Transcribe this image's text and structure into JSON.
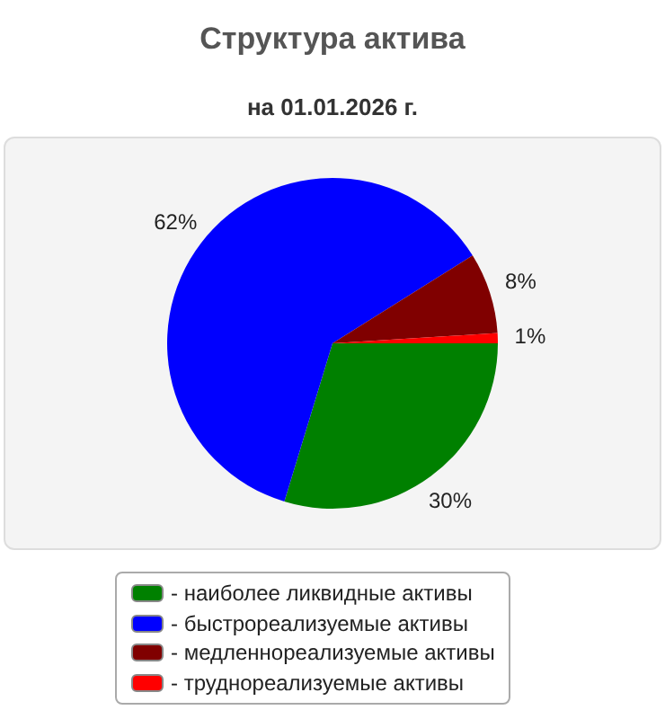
{
  "chart_data": {
    "type": "pie",
    "title": "Структура актива",
    "subtitle": "на 01.01.2026 г.",
    "categories": [
      "- наиболее ликвидные активы",
      "- быстрореализуемые активы",
      "- медленнореализуемые активы",
      "- труднореализуемые активы"
    ],
    "values": [
      30,
      62,
      8,
      1
    ],
    "colors": [
      "#008000",
      "#0000ff",
      "#800000",
      "#ff0000"
    ],
    "value_labels": [
      "30%",
      "62%",
      "8%",
      "1%"
    ],
    "legend": "bottom"
  }
}
